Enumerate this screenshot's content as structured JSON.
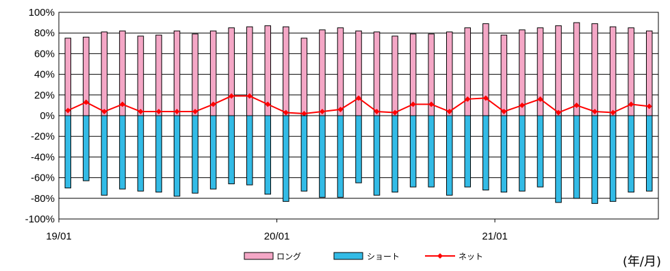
{
  "chart_data": {
    "type": "bar",
    "x_start": "19/01",
    "x_tick_labels": [
      "19/01",
      "20/01",
      "21/01"
    ],
    "x_tick_every": 12,
    "unit_label": "(年/月)",
    "ylim": [
      -100,
      100
    ],
    "y_ticks": [
      100,
      80,
      60,
      40,
      20,
      0,
      -20,
      -40,
      -60,
      -80,
      -100
    ],
    "y_tick_labels": [
      "100%",
      "80%",
      "60%",
      "40%",
      "20%",
      "0%",
      "-20%",
      "-40%",
      "-60%",
      "-80%",
      "-100%"
    ],
    "grid": true,
    "legend_position": "bottom-center",
    "series": [
      {
        "name": "ロング",
        "kind": "bar",
        "color": "#f4a7c6",
        "values": [
          75,
          76,
          81,
          82,
          77,
          78,
          82,
          79,
          82,
          85,
          86,
          87,
          86,
          75,
          83,
          85,
          82,
          81,
          77,
          79,
          79,
          81,
          85,
          89,
          78,
          83,
          85,
          87,
          90,
          89,
          86,
          85,
          82
        ]
      },
      {
        "name": "ショート",
        "kind": "bar",
        "color": "#33bbe6",
        "values": [
          -70,
          -63,
          -77,
          -71,
          -73,
          -74,
          -78,
          -75,
          -71,
          -66,
          -67,
          -76,
          -83,
          -73,
          -79,
          -79,
          -65,
          -77,
          -74,
          -69,
          -69,
          -77,
          -69,
          -72,
          -74,
          -73,
          -69,
          -84,
          -80,
          -85,
          -83,
          -74,
          -73
        ]
      },
      {
        "name": "ネット",
        "kind": "line",
        "color": "#ff0000",
        "values": [
          5,
          13,
          4,
          11,
          4,
          4,
          4,
          4,
          11,
          19,
          19,
          11,
          3,
          2,
          4,
          6,
          17,
          4,
          3,
          11,
          11,
          4,
          16,
          17,
          4,
          10,
          16,
          3,
          10,
          4,
          3,
          11,
          9
        ]
      }
    ]
  }
}
